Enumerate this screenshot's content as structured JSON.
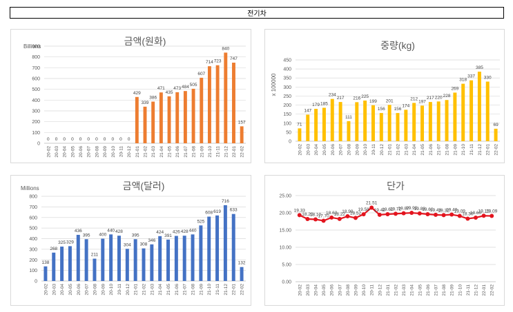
{
  "page": {
    "title": "전기차"
  },
  "chart_data": [
    {
      "id": "krw",
      "type": "bar",
      "title": "금액(원화)",
      "unit_label": "Billions",
      "color": "#ed7d31",
      "ylim": [
        0,
        900
      ],
      "yticks": [
        0,
        100,
        200,
        300,
        400,
        500,
        600,
        700,
        800,
        900
      ],
      "categories": [
        "20-02",
        "20-03",
        "20-04",
        "20-05",
        "20-06",
        "20-07",
        "20-08",
        "20-09",
        "20-10",
        "20-11",
        "20-12",
        "21-01",
        "21-02",
        "21-03",
        "21-04",
        "21-05",
        "21-06",
        "21-07",
        "21-08",
        "21-09",
        "21-10",
        "21-11",
        "21-12",
        "22-01",
        "22-02"
      ],
      "values": [
        0,
        0,
        0,
        0,
        0,
        0,
        0,
        0,
        0,
        0,
        0,
        429,
        339,
        386,
        471,
        435,
        473,
        484,
        505,
        607,
        714,
        723,
        840,
        747,
        157
      ]
    },
    {
      "id": "weight",
      "type": "bar",
      "title": "중량(kg)",
      "unit_label": "x 100000",
      "color": "#ffc000",
      "ylim": [
        0,
        450
      ],
      "yticks": [
        0,
        50,
        100,
        150,
        200,
        250,
        300,
        350,
        400,
        450
      ],
      "categories": [
        "20-02",
        "20-03",
        "20-04",
        "20-05",
        "20-06",
        "20-07",
        "20-08",
        "20-09",
        "20-10",
        "20-11",
        "20-12",
        "21-01",
        "21-02",
        "21-03",
        "21-04",
        "21-05",
        "21-06",
        "21-07",
        "21-08",
        "21-09",
        "21-10",
        "21-11",
        "21-12",
        "22-01",
        "22-02"
      ],
      "values": [
        71,
        147,
        179,
        185,
        234,
        217,
        111,
        216,
        225,
        199,
        156,
        201,
        156,
        174,
        212,
        197,
        217,
        220,
        228,
        269,
        318,
        337,
        385,
        330,
        69
      ]
    },
    {
      "id": "usd",
      "type": "bar",
      "title": "금액(달러)",
      "unit_label": "Millions",
      "color": "#4472c4",
      "ylim": [
        0,
        800
      ],
      "yticks": [
        0,
        100,
        200,
        300,
        400,
        500,
        600,
        700,
        800
      ],
      "categories": [
        "20-02",
        "20-03",
        "20-04",
        "20-05",
        "20-06",
        "20-07",
        "20-08",
        "20-09",
        "20-10",
        "20-11",
        "20-12",
        "21-01",
        "21-02",
        "21-03",
        "21-04",
        "21-05",
        "21-06",
        "21-07",
        "21-08",
        "21-09",
        "21-10",
        "21-11",
        "21-12",
        "22-01",
        "22-02"
      ],
      "values": [
        138,
        268,
        325,
        329,
        436,
        395,
        211,
        400,
        440,
        428,
        304,
        395,
        308,
        346,
        424,
        391,
        426,
        428,
        440,
        525,
        608,
        619,
        716,
        633,
        132
      ]
    },
    {
      "id": "unit_price",
      "type": "line",
      "title": "단가",
      "unit_label": "",
      "color": "#e3141e",
      "ylim": [
        0,
        25
      ],
      "yticks": [
        "0.00",
        "5.00",
        "10.00",
        "15.00",
        "20.00",
        "25.00"
      ],
      "categories": [
        "20-02",
        "20-03",
        "20-04",
        "20-05",
        "20-06",
        "20-07",
        "20-08",
        "20-09",
        "20-10",
        "20-11",
        "20-12",
        "21-01",
        "21-02",
        "21-03",
        "21-04",
        "21-05",
        "21-06",
        "21-07",
        "21-08",
        "21-09",
        "21-10",
        "21-11",
        "21-12",
        "22-01",
        "22-02"
      ],
      "values": [
        19.33,
        18.2,
        18.1,
        17.7,
        18.63,
        18.22,
        18.99,
        18.52,
        19.58,
        21.51,
        19.42,
        19.6,
        19.72,
        19.87,
        19.99,
        19.83,
        19.6,
        19.43,
        19.32,
        19.49,
        19.09,
        18.3,
        18.6,
        19.15,
        19.09
      ],
      "labels": [
        "19.33",
        "18.20",
        "18.10",
        "17.70",
        "18.63",
        "18.22",
        "18.99",
        "18.52",
        "19.58",
        "21.51",
        "19.42",
        "19.60",
        "19.72",
        "19.87",
        "19.99",
        "19.83",
        "19.60",
        "19.43",
        "19.32",
        "19.49",
        "19.09",
        "18.30",
        "18.60",
        "19.15",
        "19.09"
      ]
    }
  ]
}
